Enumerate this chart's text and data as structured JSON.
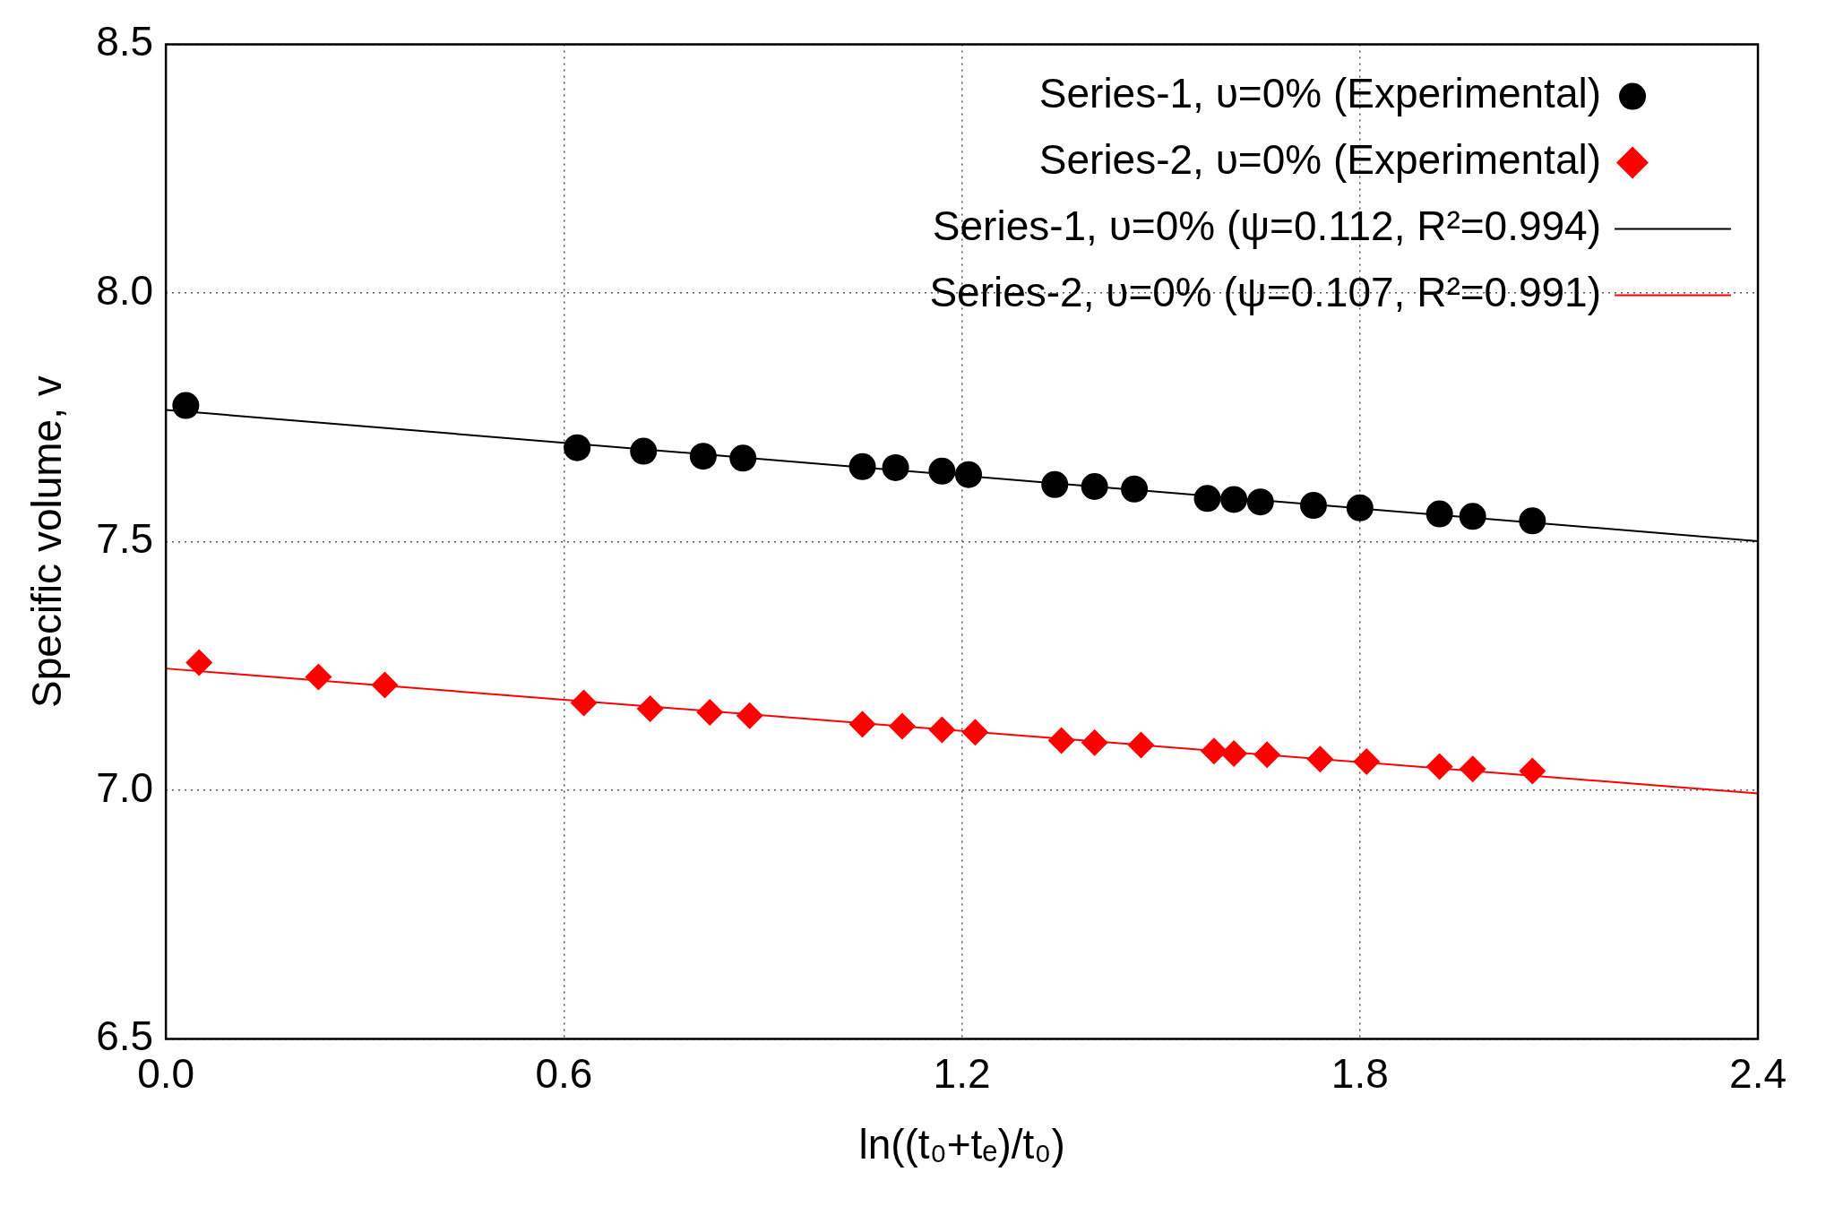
{
  "chart_data": {
    "type": "scatter",
    "xlabel": "ln((t₀+tₑ)/t₀)",
    "ylabel": "Specific volume, v",
    "xlim": [
      0,
      2.4
    ],
    "xticks": [
      {
        "value": 0,
        "label": "0.0"
      },
      0.6,
      1.2,
      1.8,
      2.4
    ],
    "ylim": [
      6.5,
      8.5
    ],
    "yticks": [
      6.5,
      {
        "value": 7,
        "label": "7.0"
      },
      7.5,
      {
        "value": 8,
        "label": "8.0"
      },
      8.5
    ],
    "grid": true,
    "legend": "top right",
    "series": [
      {
        "name": "Series-1, υ=0% (Experimental)",
        "marker": "circle",
        "color": "#000000",
        "x": [
          0.03,
          0.62,
          0.72,
          0.81,
          0.87,
          1.05,
          1.1,
          1.17,
          1.21,
          1.34,
          1.4,
          1.46,
          1.57,
          1.61,
          1.65,
          1.73,
          1.8,
          1.92,
          1.97,
          2.06
        ],
        "values": [
          7.774,
          7.689,
          7.682,
          7.672,
          7.668,
          7.651,
          7.649,
          7.642,
          7.635,
          7.615,
          7.611,
          7.606,
          7.587,
          7.585,
          7.58,
          7.573,
          7.568,
          7.556,
          7.551,
          7.542
        ]
      },
      {
        "name": "Series-2, υ=0% (Experimental)",
        "marker": "diamond",
        "color": "#ff0000",
        "x": [
          0.05,
          0.23,
          0.33,
          0.63,
          0.73,
          0.82,
          0.88,
          1.05,
          1.11,
          1.17,
          1.22,
          1.35,
          1.4,
          1.47,
          1.58,
          1.61,
          1.66,
          1.74,
          1.81,
          1.92,
          1.97,
          2.06
        ],
        "values": [
          7.257,
          7.228,
          7.212,
          7.176,
          7.164,
          7.157,
          7.15,
          7.133,
          7.129,
          7.122,
          7.117,
          7.1,
          7.096,
          7.091,
          7.079,
          7.074,
          7.072,
          7.063,
          7.058,
          7.048,
          7.043,
          7.039
        ]
      },
      {
        "name": "Series-1, υ=0% (ψ=0.112, R²=0.994)",
        "type": "line",
        "marker": "none",
        "line_style": "solid",
        "color": "#000000",
        "x": [
          0,
          2.4
        ],
        "values": [
          7.765,
          7.501
        ]
      },
      {
        "name": "Series-2, υ=0% (ψ=0.107, R²=0.991)",
        "type": "line",
        "marker": "none",
        "line_style": "solid",
        "color": "#ff0000",
        "x": [
          0,
          2.4
        ],
        "values": [
          7.245,
          6.994
        ]
      }
    ]
  }
}
